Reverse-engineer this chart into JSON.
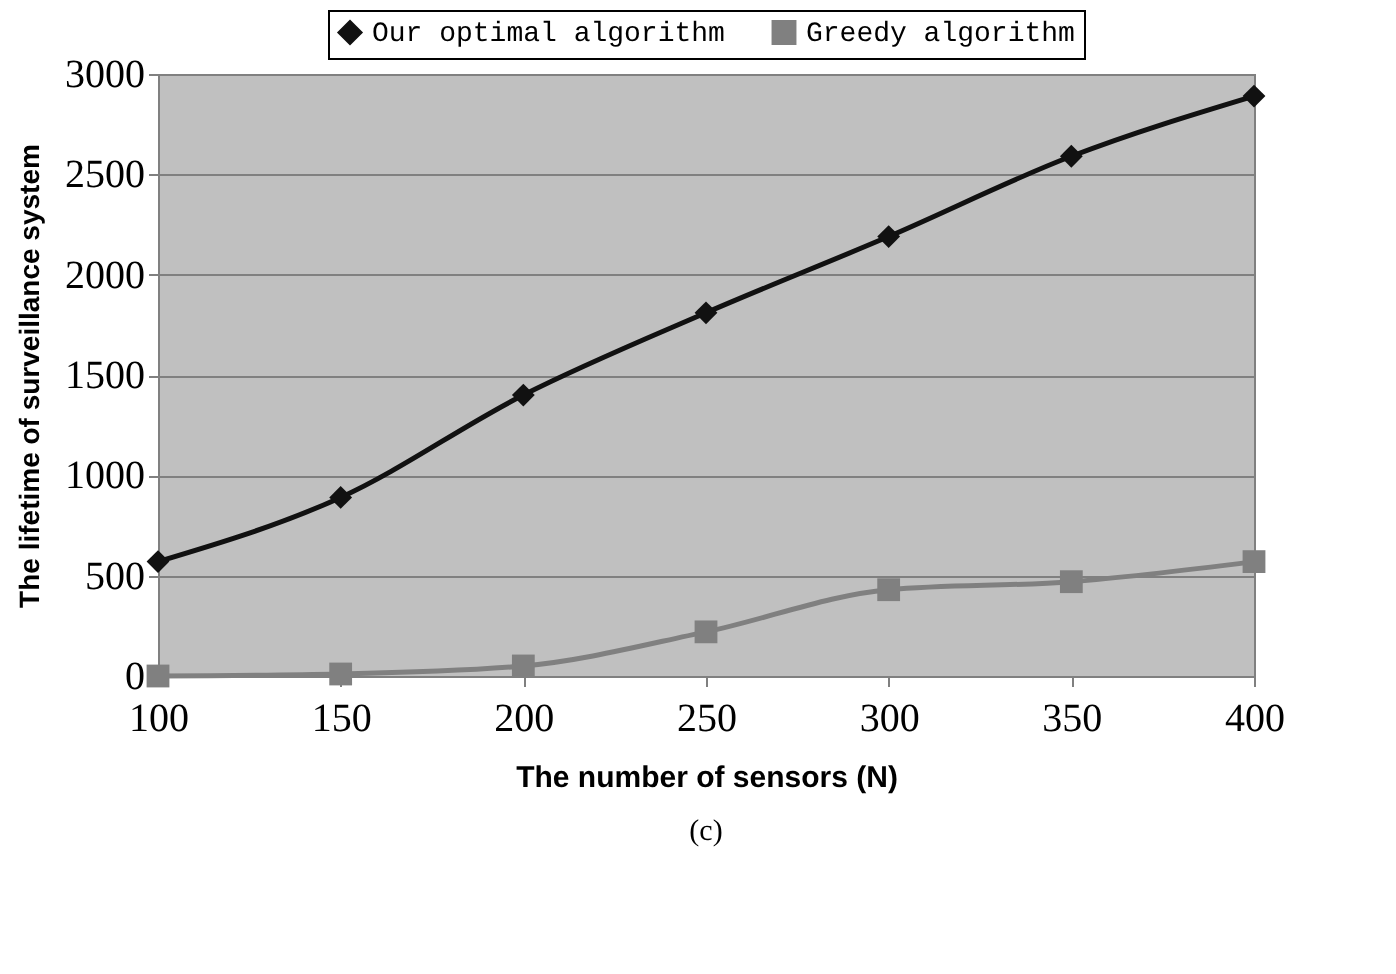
{
  "chart_data": {
    "type": "line",
    "xlabel": "The number of sensors (N)",
    "ylabel": "The lifetime of surveillance system",
    "annotations": [
      "(c)"
    ],
    "x": [
      100,
      150,
      200,
      250,
      300,
      350,
      400
    ],
    "series": [
      {
        "name": "Our optimal algorithm",
        "color": "#111111",
        "marker": "diamond",
        "values": [
          570,
          890,
          1400,
          1810,
          2190,
          2590,
          2890
        ]
      },
      {
        "name": "Greedy algorithm",
        "color": "#808080",
        "marker": "square",
        "values": [
          0,
          10,
          50,
          220,
          430,
          470,
          570
        ]
      }
    ],
    "xlim": [
      100,
      400
    ],
    "xticks": [
      100,
      150,
      200,
      250,
      300,
      350,
      400
    ],
    "ylim": [
      0,
      3000
    ],
    "yticks": [
      0,
      500,
      1000,
      1500,
      2000,
      2500,
      3000
    ],
    "grid": "y",
    "legend": "top",
    "line_style": "solid"
  }
}
